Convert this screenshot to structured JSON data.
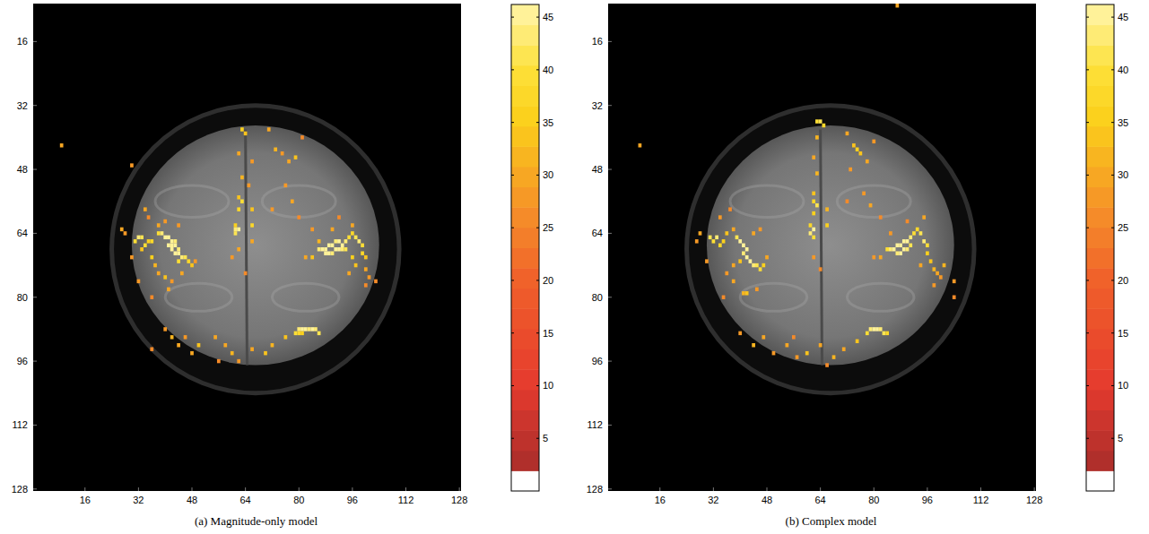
{
  "chart_data": [
    {
      "type": "heatmap",
      "title": "(a) Magnitude-only model",
      "xlim": [
        0.5,
        128.5
      ],
      "ylim": [
        6.5,
        128.5
      ],
      "xticks": [
        16,
        32,
        48,
        64,
        80,
        96,
        112,
        128
      ],
      "yticks": [
        16,
        32,
        48,
        64,
        80,
        96,
        112,
        128
      ],
      "colorbar": {
        "range": [
          0,
          46.2
        ],
        "ticks": [
          5,
          10,
          15,
          20,
          25,
          30,
          35,
          40,
          45
        ]
      },
      "cells": [
        [
          38,
          64,
          40
        ],
        [
          39,
          64,
          44
        ],
        [
          40,
          65,
          45
        ],
        [
          41,
          65,
          46
        ],
        [
          42,
          66,
          45
        ],
        [
          43,
          66,
          44
        ],
        [
          41,
          67,
          45
        ],
        [
          42,
          67,
          46
        ],
        [
          43,
          67,
          45
        ],
        [
          44,
          68,
          44
        ],
        [
          42,
          68,
          45
        ],
        [
          43,
          69,
          45
        ],
        [
          44,
          69,
          46
        ],
        [
          45,
          70,
          44
        ],
        [
          46,
          70,
          42
        ],
        [
          44,
          71,
          40
        ],
        [
          47,
          71,
          38
        ],
        [
          36,
          66,
          38
        ],
        [
          35,
          66,
          36
        ],
        [
          34,
          67,
          40
        ],
        [
          33,
          65,
          42
        ],
        [
          32,
          65,
          44
        ],
        [
          31,
          66,
          40
        ],
        [
          33,
          68,
          34
        ],
        [
          36,
          70,
          36
        ],
        [
          37,
          72,
          32
        ],
        [
          38,
          74,
          30
        ],
        [
          40,
          75,
          33
        ],
        [
          42,
          76,
          28
        ],
        [
          45,
          74,
          30
        ],
        [
          48,
          72,
          34
        ],
        [
          49,
          71,
          28
        ],
        [
          38,
          62,
          30
        ],
        [
          40,
          61,
          28
        ],
        [
          35,
          60,
          26
        ],
        [
          34,
          58,
          30
        ],
        [
          32,
          76,
          28
        ],
        [
          41,
          78,
          30
        ],
        [
          36,
          80,
          26
        ],
        [
          30,
          70,
          28
        ],
        [
          44,
          62,
          27
        ],
        [
          27,
          63,
          30
        ],
        [
          86,
          68,
          44
        ],
        [
          87,
          68,
          46
        ],
        [
          88,
          68,
          45
        ],
        [
          89,
          67,
          46
        ],
        [
          90,
          67,
          45
        ],
        [
          91,
          66,
          44
        ],
        [
          92,
          66,
          46
        ],
        [
          93,
          67,
          45
        ],
        [
          94,
          66,
          44
        ],
        [
          88,
          69,
          45
        ],
        [
          89,
          69,
          46
        ],
        [
          90,
          69,
          44
        ],
        [
          91,
          68,
          45
        ],
        [
          92,
          68,
          46
        ],
        [
          93,
          68,
          44
        ],
        [
          94,
          68,
          42
        ],
        [
          95,
          65,
          40
        ],
        [
          96,
          64,
          38
        ],
        [
          97,
          65,
          42
        ],
        [
          98,
          66,
          44
        ],
        [
          99,
          67,
          40
        ],
        [
          99,
          69,
          38
        ],
        [
          96,
          70,
          36
        ],
        [
          97,
          72,
          34
        ],
        [
          100,
          73,
          30
        ],
        [
          101,
          75,
          28
        ],
        [
          95,
          74,
          30
        ],
        [
          84,
          70,
          34
        ],
        [
          82,
          70,
          30
        ],
        [
          86,
          66,
          32
        ],
        [
          84,
          63,
          28
        ],
        [
          90,
          63,
          30
        ],
        [
          92,
          60,
          26
        ],
        [
          96,
          62,
          30
        ],
        [
          100,
          70,
          34
        ],
        [
          103,
          76,
          26
        ],
        [
          63,
          38,
          36
        ],
        [
          64,
          39,
          34
        ],
        [
          62,
          44,
          30
        ],
        [
          66,
          46,
          28
        ],
        [
          63,
          50,
          32
        ],
        [
          62,
          55,
          34
        ],
        [
          63,
          56,
          40
        ],
        [
          62,
          58,
          38
        ],
        [
          61,
          62,
          36
        ],
        [
          61,
          63,
          44
        ],
        [
          62,
          63,
          45
        ],
        [
          61,
          64,
          42
        ],
        [
          62,
          68,
          30
        ],
        [
          66,
          58,
          34
        ],
        [
          66,
          62,
          38
        ],
        [
          66,
          66,
          30
        ],
        [
          65,
          52,
          28
        ],
        [
          60,
          70,
          28
        ],
        [
          64,
          74,
          26
        ],
        [
          71,
          38,
          30
        ],
        [
          73,
          43,
          32
        ],
        [
          75,
          44,
          28
        ],
        [
          77,
          46,
          30
        ],
        [
          79,
          45,
          34
        ],
        [
          81,
          40,
          26
        ],
        [
          76,
          52,
          28
        ],
        [
          78,
          56,
          30
        ],
        [
          80,
          60,
          26
        ],
        [
          72,
          58,
          28
        ],
        [
          80,
          88,
          44
        ],
        [
          81,
          88,
          46
        ],
        [
          82,
          88,
          45
        ],
        [
          83,
          88,
          44
        ],
        [
          84,
          88,
          45
        ],
        [
          85,
          88,
          44
        ],
        [
          86,
          89,
          42
        ],
        [
          79,
          89,
          40
        ],
        [
          80,
          89,
          38
        ],
        [
          81,
          89,
          36
        ],
        [
          76,
          90,
          34
        ],
        [
          72,
          92,
          32
        ],
        [
          70,
          94,
          34
        ],
        [
          66,
          93,
          30
        ],
        [
          60,
          94,
          32
        ],
        [
          58,
          92,
          30
        ],
        [
          62,
          96,
          28
        ],
        [
          55,
          90,
          30
        ],
        [
          50,
          92,
          34
        ],
        [
          48,
          94,
          30
        ],
        [
          46,
          90,
          28
        ],
        [
          44,
          92,
          30
        ],
        [
          42,
          90,
          32
        ],
        [
          40,
          88,
          28
        ],
        [
          36,
          93,
          26
        ],
        [
          56,
          96,
          26
        ],
        [
          9,
          42,
          30
        ],
        [
          28,
          64,
          28
        ],
        [
          30,
          47,
          28
        ],
        [
          100,
          77,
          26
        ]
      ]
    },
    {
      "type": "heatmap",
      "title": "(b) Complex model",
      "xlim": [
        0.5,
        128.5
      ],
      "ylim": [
        6.5,
        128.5
      ],
      "xticks": [
        16,
        32,
        48,
        64,
        80,
        96,
        112,
        128
      ],
      "yticks": [
        16,
        32,
        48,
        64,
        80,
        96,
        112,
        128
      ],
      "colorbar": {
        "range": [
          0,
          46.2
        ],
        "ticks": [
          5,
          10,
          15,
          20,
          25,
          30,
          35,
          40,
          45
        ]
      },
      "cells": [
        [
          31,
          65,
          42
        ],
        [
          32,
          66,
          40
        ],
        [
          33,
          65,
          44
        ],
        [
          34,
          67,
          38
        ],
        [
          35,
          66,
          36
        ],
        [
          36,
          64,
          34
        ],
        [
          38,
          63,
          30
        ],
        [
          39,
          65,
          42
        ],
        [
          40,
          66,
          45
        ],
        [
          41,
          67,
          46
        ],
        [
          42,
          68,
          45
        ],
        [
          41,
          69,
          44
        ],
        [
          42,
          70,
          46
        ],
        [
          43,
          71,
          45
        ],
        [
          44,
          72,
          44
        ],
        [
          45,
          72,
          42
        ],
        [
          46,
          73,
          40
        ],
        [
          47,
          72,
          36
        ],
        [
          40,
          71,
          34
        ],
        [
          38,
          72,
          30
        ],
        [
          36,
          74,
          28
        ],
        [
          38,
          76,
          30
        ],
        [
          41,
          79,
          32
        ],
        [
          42,
          79,
          34
        ],
        [
          35,
          80,
          26
        ],
        [
          45,
          78,
          28
        ],
        [
          44,
          64,
          30
        ],
        [
          46,
          63,
          28
        ],
        [
          30,
          71,
          28
        ],
        [
          28,
          64,
          30
        ],
        [
          34,
          60,
          28
        ],
        [
          37,
          58,
          26
        ],
        [
          48,
          70,
          30
        ],
        [
          84,
          68,
          40
        ],
        [
          85,
          68,
          44
        ],
        [
          86,
          68,
          46
        ],
        [
          87,
          67,
          45
        ],
        [
          88,
          67,
          46
        ],
        [
          89,
          66,
          45
        ],
        [
          90,
          66,
          46
        ],
        [
          91,
          65,
          44
        ],
        [
          87,
          69,
          44
        ],
        [
          88,
          69,
          45
        ],
        [
          89,
          68,
          46
        ],
        [
          90,
          68,
          44
        ],
        [
          91,
          67,
          42
        ],
        [
          92,
          64,
          40
        ],
        [
          93,
          63,
          38
        ],
        [
          94,
          64,
          42
        ],
        [
          95,
          66,
          44
        ],
        [
          96,
          67,
          40
        ],
        [
          96,
          69,
          36
        ],
        [
          97,
          71,
          34
        ],
        [
          98,
          73,
          32
        ],
        [
          99,
          74,
          30
        ],
        [
          100,
          75,
          28
        ],
        [
          94,
          72,
          30
        ],
        [
          82,
          70,
          30
        ],
        [
          80,
          70,
          28
        ],
        [
          85,
          64,
          28
        ],
        [
          90,
          61,
          26
        ],
        [
          95,
          60,
          30
        ],
        [
          101,
          72,
          32
        ],
        [
          104,
          80,
          26
        ],
        [
          98,
          77,
          28
        ],
        [
          63,
          36,
          40
        ],
        [
          64,
          36,
          42
        ],
        [
          65,
          37,
          38
        ],
        [
          63,
          40,
          32
        ],
        [
          62,
          45,
          30
        ],
        [
          63,
          49,
          32
        ],
        [
          62,
          54,
          34
        ],
        [
          62,
          56,
          38
        ],
        [
          63,
          57,
          42
        ],
        [
          62,
          59,
          36
        ],
        [
          61,
          62,
          38
        ],
        [
          62,
          63,
          45
        ],
        [
          61,
          64,
          44
        ],
        [
          62,
          65,
          40
        ],
        [
          66,
          58,
          32
        ],
        [
          66,
          62,
          36
        ],
        [
          62,
          70,
          28
        ],
        [
          64,
          73,
          26
        ],
        [
          72,
          39,
          30
        ],
        [
          74,
          42,
          34
        ],
        [
          75,
          43,
          36
        ],
        [
          76,
          44,
          34
        ],
        [
          78,
          46,
          30
        ],
        [
          80,
          41,
          28
        ],
        [
          73,
          48,
          28
        ],
        [
          77,
          54,
          28
        ],
        [
          79,
          57,
          30
        ],
        [
          82,
          60,
          26
        ],
        [
          72,
          56,
          26
        ],
        [
          79,
          88,
          44
        ],
        [
          80,
          88,
          46
        ],
        [
          81,
          88,
          45
        ],
        [
          82,
          88,
          44
        ],
        [
          83,
          89,
          42
        ],
        [
          78,
          89,
          40
        ],
        [
          84,
          89,
          38
        ],
        [
          75,
          91,
          34
        ],
        [
          71,
          93,
          30
        ],
        [
          68,
          95,
          32
        ],
        [
          64,
          92,
          30
        ],
        [
          60,
          94,
          34
        ],
        [
          57,
          95,
          28
        ],
        [
          54,
          92,
          30
        ],
        [
          50,
          94,
          28
        ],
        [
          47,
          90,
          30
        ],
        [
          44,
          92,
          32
        ],
        [
          40,
          89,
          28
        ],
        [
          56,
          90,
          26
        ],
        [
          66,
          97,
          26
        ],
        [
          10,
          42,
          30
        ],
        [
          87,
          7,
          30
        ],
        [
          27,
          66,
          28
        ],
        [
          104,
          76,
          28
        ]
      ]
    }
  ]
}
